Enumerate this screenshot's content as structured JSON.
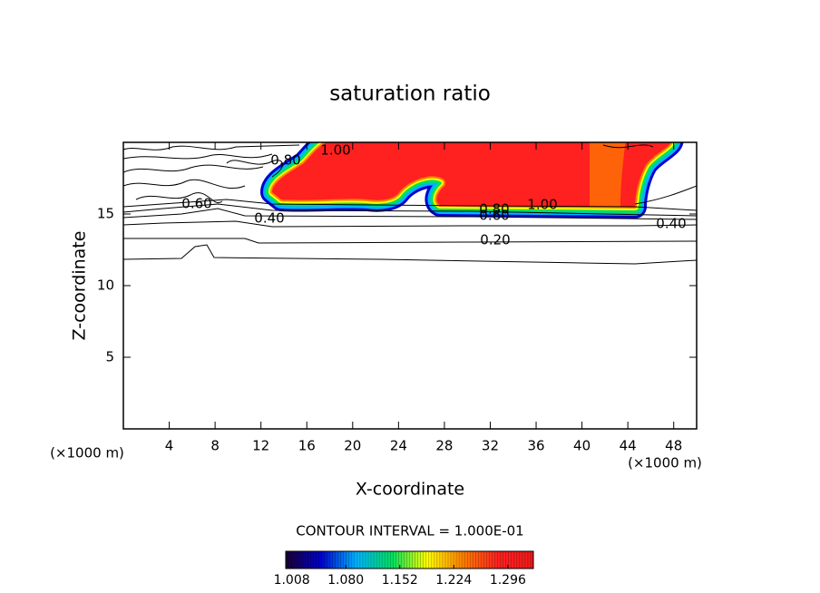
{
  "chart_data": {
    "type": "contour",
    "title": "saturation ratio",
    "xlabel": "X-coordinate",
    "ylabel": "Z-coordinate",
    "x_unit": "(×1000 m)",
    "y_unit": "(×1000 m)",
    "xlim": [
      0,
      50
    ],
    "ylim": [
      0,
      20
    ],
    "xticks": [
      4,
      8,
      12,
      16,
      20,
      24,
      28,
      32,
      36,
      40,
      44,
      48
    ],
    "yticks": [
      5,
      10,
      15
    ],
    "contour_interval": "CONTOUR INTERVAL = 1.000E-01",
    "contour_levels": [
      {
        "value": 0.2,
        "label": "0.20"
      },
      {
        "value": 0.4,
        "label": "0.40"
      },
      {
        "value": 0.6,
        "label": "0.60"
      },
      {
        "value": 0.8,
        "label": "0.80"
      },
      {
        "value": 1.0,
        "label": "1.00"
      }
    ],
    "clim": [
      1.0,
      1.33
    ],
    "colorbar_ticks": [
      {
        "value": 1.008,
        "label": "1.008"
      },
      {
        "value": 1.08,
        "label": "1.080"
      },
      {
        "value": 1.152,
        "label": "1.152"
      },
      {
        "value": 1.224,
        "label": "1.224"
      },
      {
        "value": 1.296,
        "label": "1.296"
      }
    ],
    "colormap": [
      "#1a0033",
      "#0000cc",
      "#00b4ff",
      "#00e060",
      "#ffff00",
      "#ff8000",
      "#ff2020",
      "#ee1a1a"
    ]
  }
}
